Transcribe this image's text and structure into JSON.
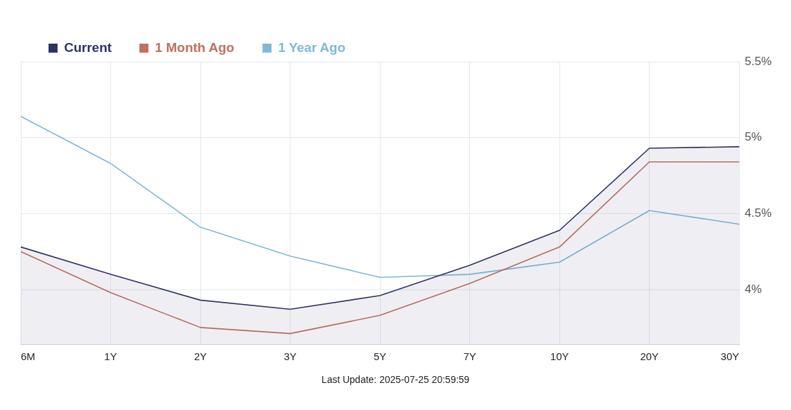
{
  "chart_data": {
    "type": "line",
    "categories": [
      "6M",
      "1Y",
      "2Y",
      "3Y",
      "5Y",
      "7Y",
      "10Y",
      "20Y",
      "30Y"
    ],
    "series": [
      {
        "name": "Current",
        "type": "area",
        "color": "#2e3166",
        "values": [
          4.28,
          4.1,
          3.93,
          3.87,
          3.96,
          4.16,
          4.39,
          4.93,
          4.94
        ]
      },
      {
        "name": "1 Month Ago",
        "color": "#c0705e",
        "values": [
          4.25,
          3.98,
          3.75,
          3.71,
          3.83,
          4.04,
          4.28,
          4.84,
          4.84
        ]
      },
      {
        "name": "1 Year Ago",
        "color": "#7fb8d8",
        "values": [
          5.14,
          4.83,
          4.41,
          4.22,
          4.08,
          4.1,
          4.18,
          4.52,
          4.43
        ]
      }
    ],
    "ylim": [
      3.64,
      5.5
    ],
    "yticks": [
      {
        "value": 4,
        "label": "4%"
      },
      {
        "value": 4.5,
        "label": "4.5%"
      },
      {
        "value": 5,
        "label": "5%"
      },
      {
        "value": 5.5,
        "label": "5.5%"
      }
    ],
    "grid": true,
    "legend": "top left",
    "marker": "none",
    "annotations": [
      "Last Update: 2025-07-25 20:59:59"
    ]
  }
}
